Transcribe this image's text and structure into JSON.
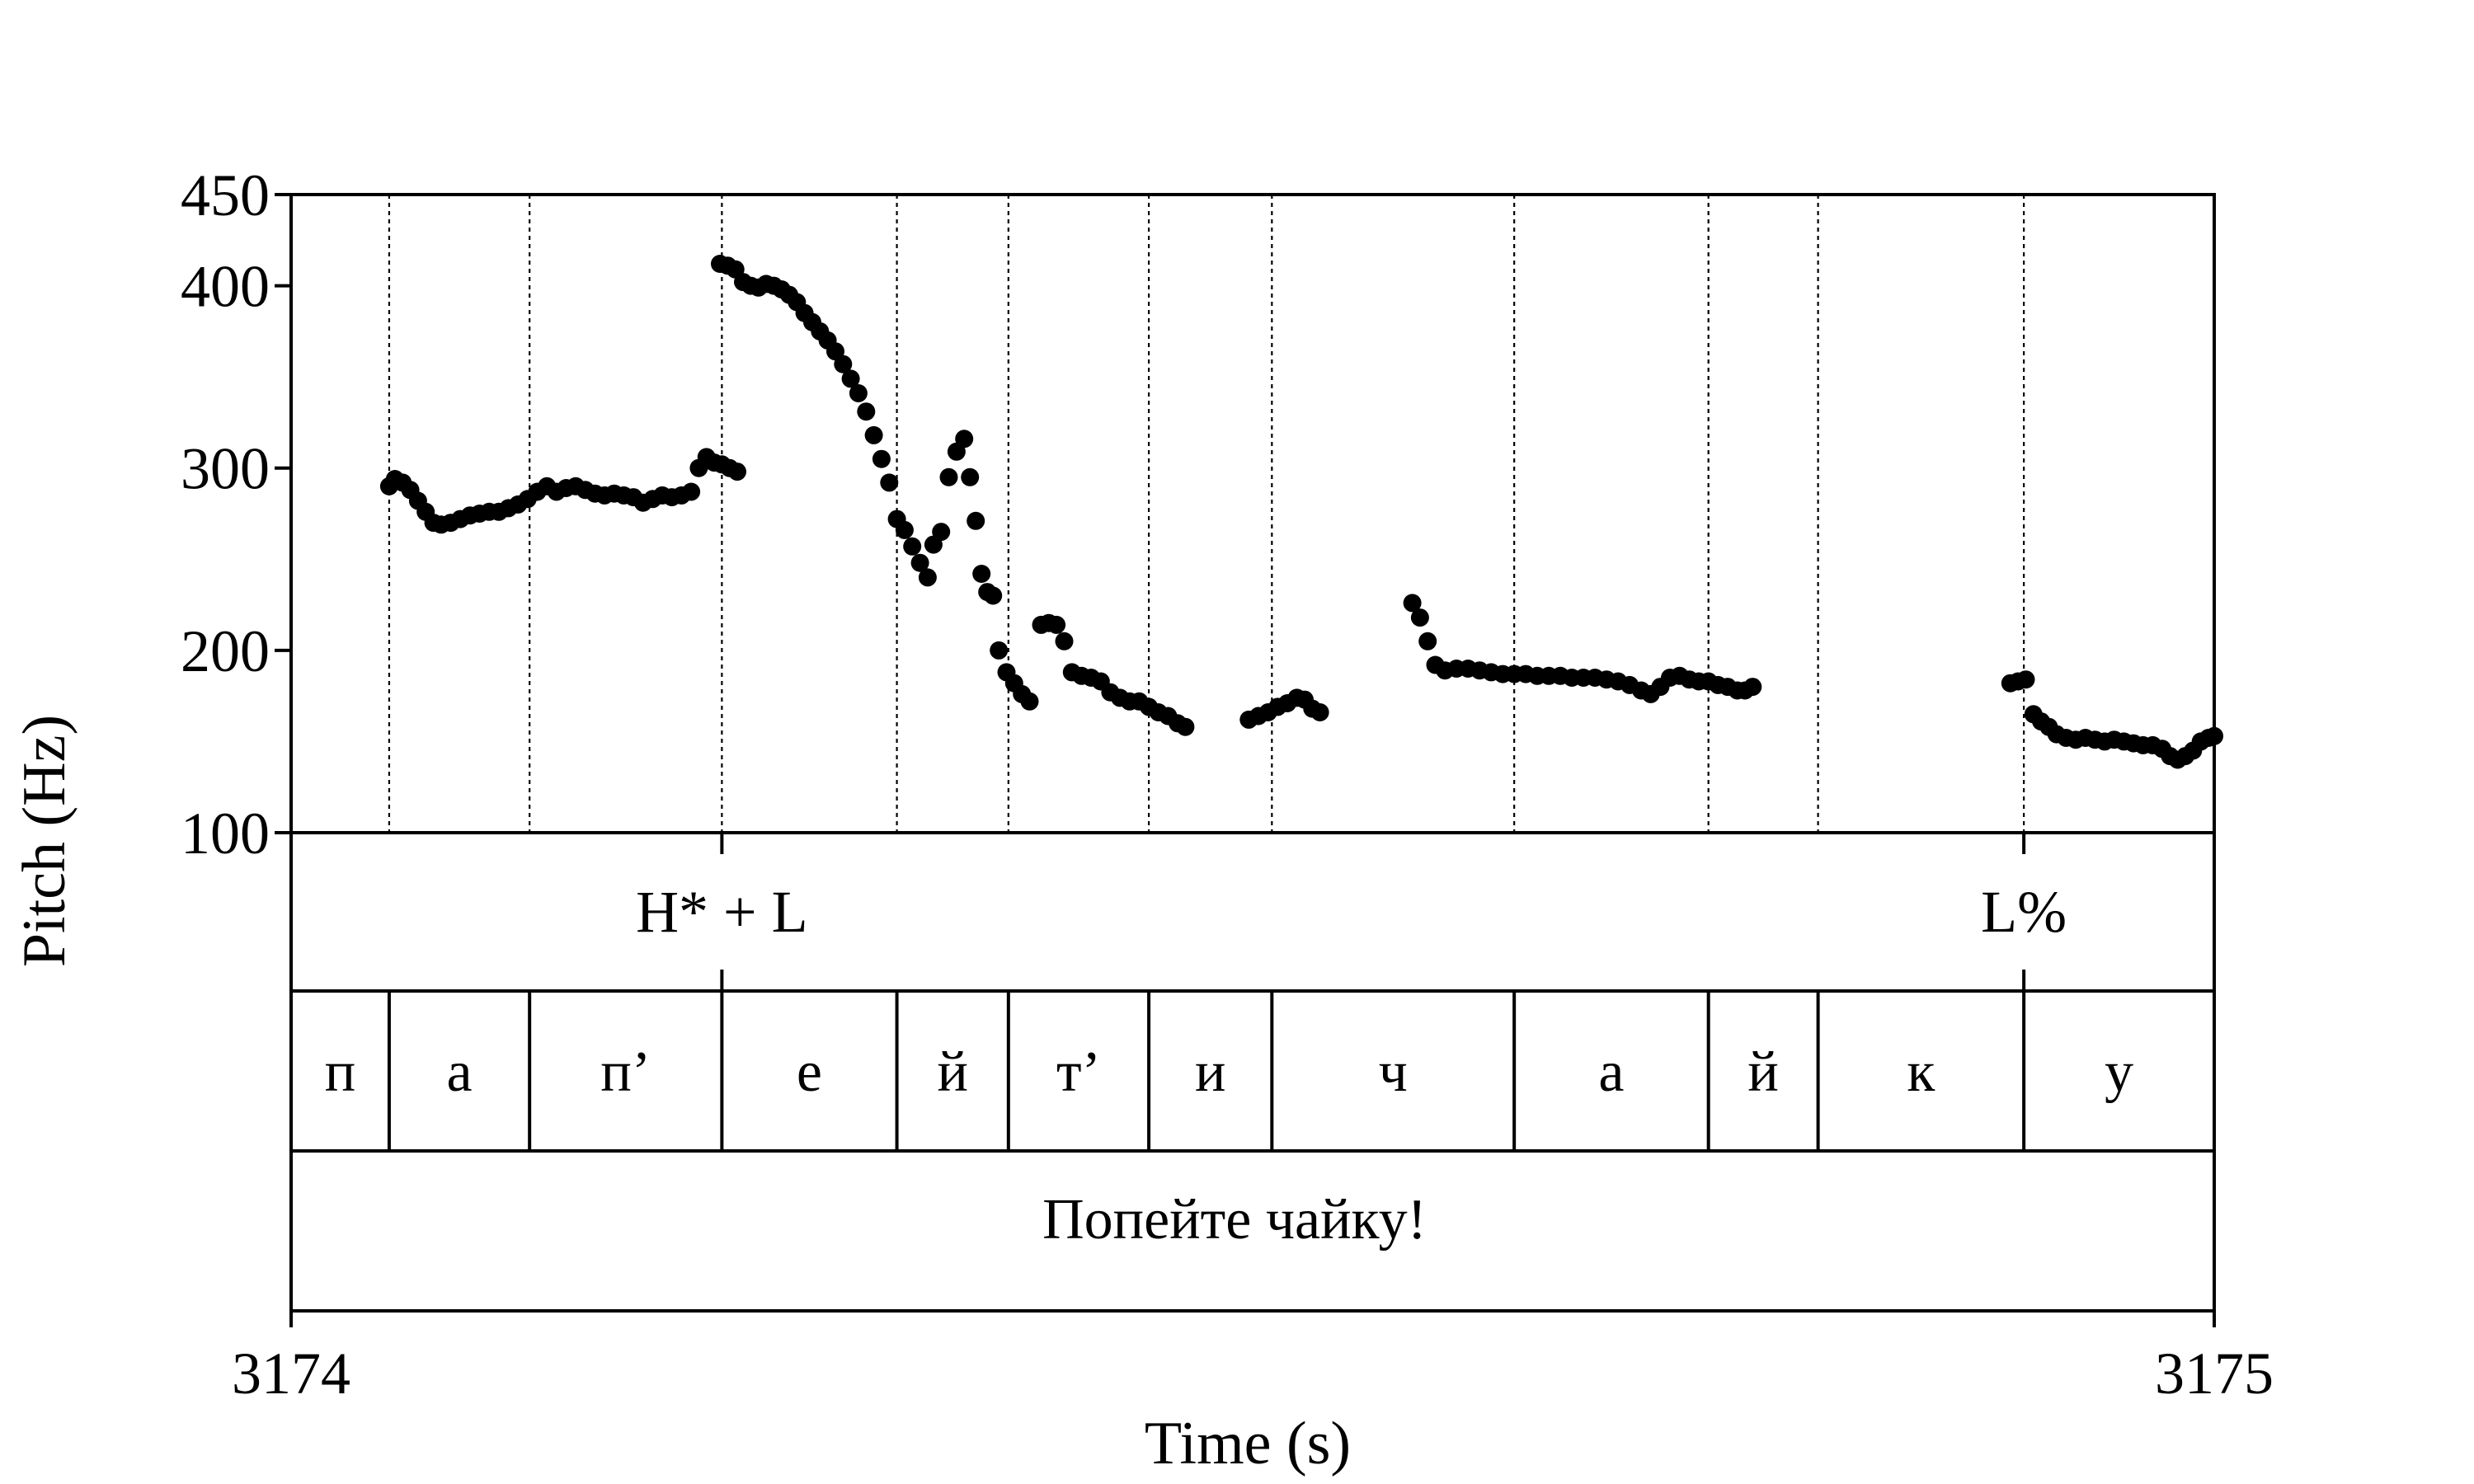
{
  "chart_data": {
    "type": "scatter",
    "title": "",
    "xlabel": "Time (s)",
    "ylabel": "Pitch (Hz)",
    "xlim": [
      3174,
      3175
    ],
    "ylim": [
      100,
      450
    ],
    "y_ticks": [
      "100",
      "200",
      "300",
      "400",
      "450"
    ],
    "x_ticks": [
      "3174",
      "3175"
    ],
    "grid": false,
    "series": [
      {
        "values": [
          [
            3174.051,
            290
          ],
          [
            3174.054,
            294
          ],
          [
            3174.058,
            292
          ],
          [
            3174.062,
            288
          ],
          [
            3174.066,
            282
          ],
          [
            3174.07,
            276
          ],
          [
            3174.074,
            270
          ],
          [
            3174.078,
            269
          ],
          [
            3174.083,
            270
          ],
          [
            3174.088,
            272
          ],
          [
            3174.093,
            274
          ],
          [
            3174.098,
            275
          ],
          [
            3174.103,
            276
          ],
          [
            3174.108,
            276
          ],
          [
            3174.113,
            278
          ],
          [
            3174.118,
            280
          ],
          [
            3174.123,
            283
          ],
          [
            3174.128,
            287
          ],
          [
            3174.133,
            290
          ],
          [
            3174.138,
            287
          ],
          [
            3174.143,
            289
          ],
          [
            3174.148,
            290
          ],
          [
            3174.153,
            288
          ],
          [
            3174.158,
            286
          ],
          [
            3174.163,
            285
          ],
          [
            3174.168,
            286
          ],
          [
            3174.173,
            285
          ],
          [
            3174.178,
            284
          ],
          [
            3174.183,
            281
          ],
          [
            3174.188,
            283
          ],
          [
            3174.193,
            285
          ],
          [
            3174.198,
            284
          ],
          [
            3174.203,
            285
          ],
          [
            3174.208,
            287
          ],
          [
            3174.212,
            300
          ],
          [
            3174.216,
            306
          ],
          [
            3174.22,
            303
          ],
          [
            3174.224,
            302
          ],
          [
            3174.228,
            300
          ],
          [
            3174.232,
            298
          ],
          [
            3174.223,
            412
          ],
          [
            3174.227,
            411
          ],
          [
            3174.231,
            409
          ],
          [
            3174.235,
            402
          ],
          [
            3174.239,
            400
          ],
          [
            3174.243,
            399
          ],
          [
            3174.247,
            401
          ],
          [
            3174.251,
            400
          ],
          [
            3174.255,
            398
          ],
          [
            3174.259,
            395
          ],
          [
            3174.263,
            391
          ],
          [
            3174.267,
            385
          ],
          [
            3174.271,
            380
          ],
          [
            3174.275,
            375
          ],
          [
            3174.279,
            370
          ],
          [
            3174.283,
            364
          ],
          [
            3174.287,
            357
          ],
          [
            3174.291,
            349
          ],
          [
            3174.295,
            341
          ],
          [
            3174.299,
            331
          ],
          [
            3174.303,
            318
          ],
          [
            3174.307,
            305
          ],
          [
            3174.311,
            292
          ],
          [
            3174.315,
            272
          ],
          [
            3174.319,
            266
          ],
          [
            3174.323,
            257
          ],
          [
            3174.327,
            248
          ],
          [
            3174.331,
            240
          ],
          [
            3174.334,
            258
          ],
          [
            3174.338,
            265
          ],
          [
            3174.342,
            295
          ],
          [
            3174.346,
            309
          ],
          [
            3174.35,
            316
          ],
          [
            3174.353,
            295
          ],
          [
            3174.356,
            271
          ],
          [
            3174.359,
            242
          ],
          [
            3174.362,
            232
          ],
          [
            3174.365,
            230
          ],
          [
            3174.368,
            200
          ],
          [
            3174.372,
            188
          ],
          [
            3174.376,
            182
          ],
          [
            3174.38,
            176
          ],
          [
            3174.384,
            172
          ],
          [
            3174.39,
            214
          ],
          [
            3174.394,
            215
          ],
          [
            3174.398,
            214
          ],
          [
            3174.402,
            205
          ],
          [
            3174.406,
            188
          ],
          [
            3174.411,
            186
          ],
          [
            3174.416,
            185
          ],
          [
            3174.421,
            183
          ],
          [
            3174.426,
            177
          ],
          [
            3174.431,
            174
          ],
          [
            3174.436,
            172
          ],
          [
            3174.441,
            172
          ],
          [
            3174.446,
            169
          ],
          [
            3174.451,
            166
          ],
          [
            3174.456,
            164
          ],
          [
            3174.461,
            160
          ],
          [
            3174.465,
            158
          ],
          [
            3174.498,
            162
          ],
          [
            3174.503,
            164
          ],
          [
            3174.508,
            166
          ],
          [
            3174.513,
            169
          ],
          [
            3174.518,
            171
          ],
          [
            3174.523,
            174
          ],
          [
            3174.527,
            173
          ],
          [
            3174.531,
            168
          ],
          [
            3174.535,
            166
          ],
          [
            3174.583,
            226
          ],
          [
            3174.587,
            218
          ],
          [
            3174.591,
            205
          ],
          [
            3174.595,
            192
          ],
          [
            3174.6,
            189
          ],
          [
            3174.606,
            190
          ],
          [
            3174.612,
            190
          ],
          [
            3174.618,
            189
          ],
          [
            3174.624,
            188
          ],
          [
            3174.63,
            187
          ],
          [
            3174.636,
            187
          ],
          [
            3174.642,
            187
          ],
          [
            3174.648,
            186
          ],
          [
            3174.654,
            186
          ],
          [
            3174.66,
            186
          ],
          [
            3174.666,
            185
          ],
          [
            3174.672,
            185
          ],
          [
            3174.678,
            185
          ],
          [
            3174.684,
            184
          ],
          [
            3174.69,
            183
          ],
          [
            3174.696,
            181
          ],
          [
            3174.702,
            178
          ],
          [
            3174.707,
            176
          ],
          [
            3174.712,
            180
          ],
          [
            3174.717,
            185
          ],
          [
            3174.722,
            186
          ],
          [
            3174.727,
            184
          ],
          [
            3174.732,
            183
          ],
          [
            3174.737,
            183
          ],
          [
            3174.742,
            181
          ],
          [
            3174.747,
            180
          ],
          [
            3174.752,
            178
          ],
          [
            3174.756,
            178
          ],
          [
            3174.76,
            180
          ],
          [
            3174.894,
            182
          ],
          [
            3174.898,
            183
          ],
          [
            3174.902,
            184
          ],
          [
            3174.906,
            165
          ],
          [
            3174.91,
            161
          ],
          [
            3174.914,
            158
          ],
          [
            3174.918,
            154
          ],
          [
            3174.923,
            152
          ],
          [
            3174.928,
            151
          ],
          [
            3174.933,
            152
          ],
          [
            3174.938,
            151
          ],
          [
            3174.943,
            150
          ],
          [
            3174.948,
            151
          ],
          [
            3174.953,
            150
          ],
          [
            3174.958,
            149
          ],
          [
            3174.963,
            148
          ],
          [
            3174.968,
            148
          ],
          [
            3174.973,
            146
          ],
          [
            3174.977,
            142
          ],
          [
            3174.981,
            140
          ],
          [
            3174.985,
            142
          ],
          [
            3174.989,
            145
          ],
          [
            3174.993,
            150
          ],
          [
            3174.997,
            152
          ],
          [
            3175.0,
            153
          ]
        ]
      }
    ],
    "tones_tier": {
      "labels": [
        {
          "text": "H* + L",
          "t": 3174.224
        },
        {
          "text": "L%",
          "t": 3174.901
        }
      ]
    },
    "segments_tier": {
      "boundaries": [
        3174.051,
        3174.124,
        3174.224,
        3174.315,
        3174.373,
        3174.446,
        3174.51,
        3174.636,
        3174.737,
        3174.794,
        3174.901
      ],
      "labels": [
        "п",
        "а",
        "п’",
        "е",
        "й",
        "т’",
        "и",
        "ч",
        "а",
        "й",
        "к",
        "у"
      ]
    },
    "utterance_tier": {
      "text": "Попейте чайку!"
    }
  }
}
